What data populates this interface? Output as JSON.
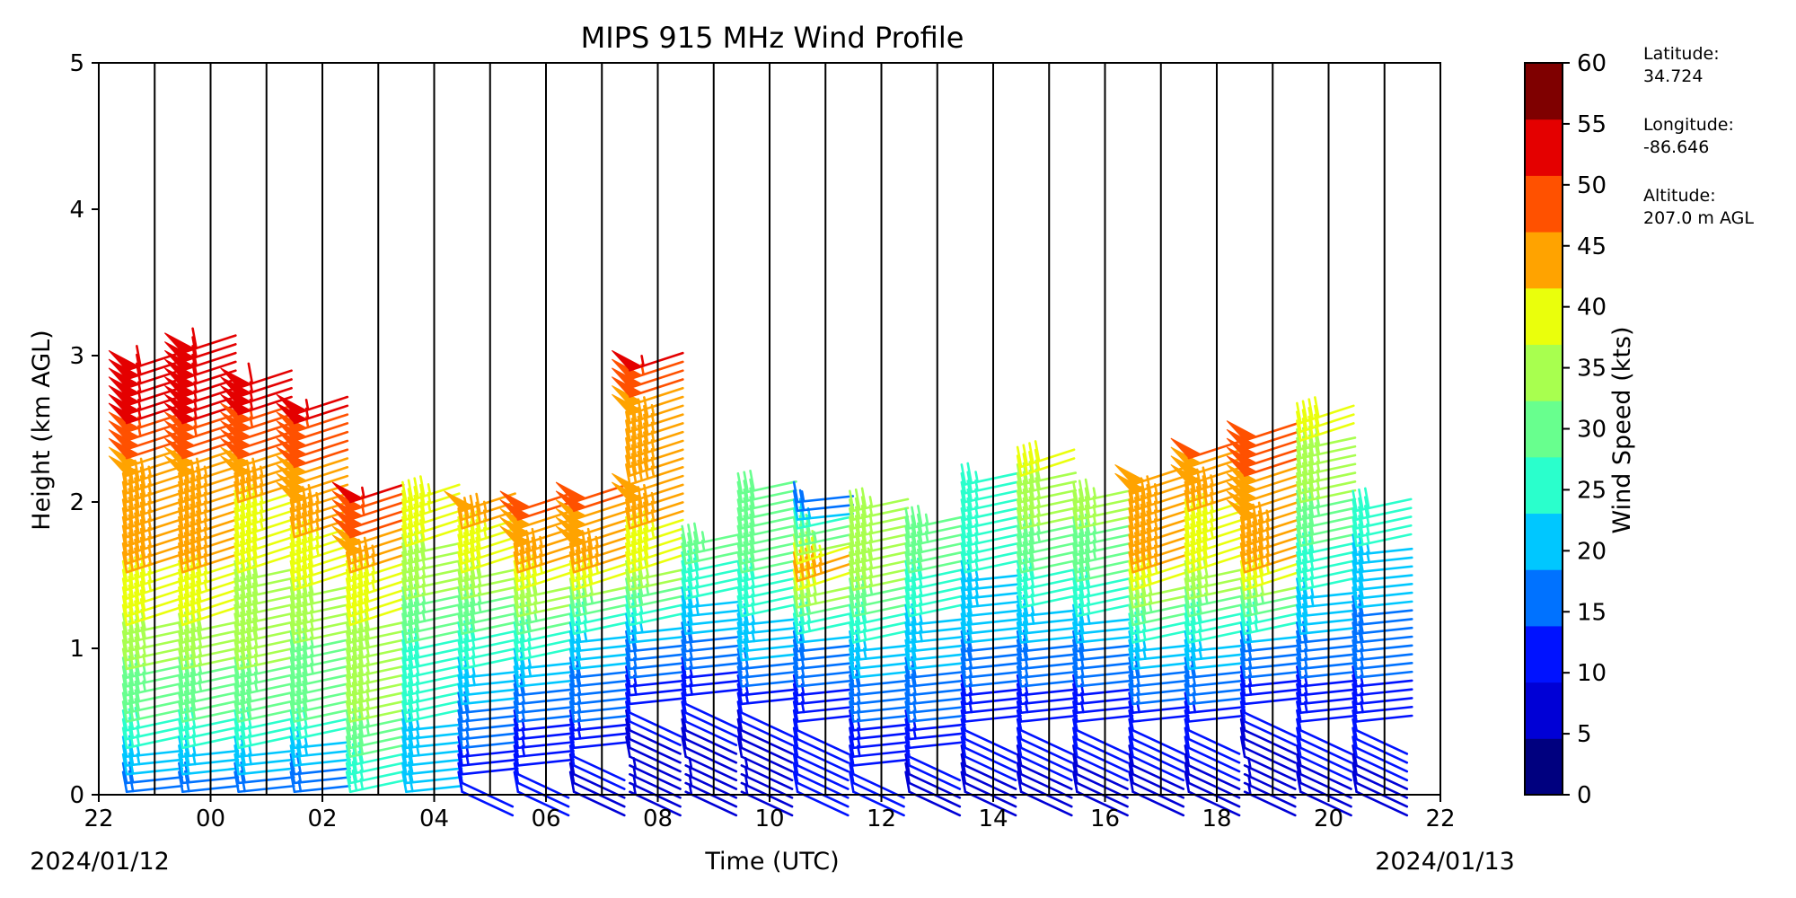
{
  "chart_data": {
    "type": "wind_barbs",
    "title": "MIPS 915 MHz Wind Profile",
    "xlabel": "Time (UTC)",
    "ylabel": "Height (km AGL)",
    "xlim": [
      "22",
      "22"
    ],
    "ylim": [
      0,
      5
    ],
    "x_tick_labels": [
      "22",
      "00",
      "02",
      "04",
      "06",
      "08",
      "10",
      "12",
      "14",
      "16",
      "18",
      "20",
      "22"
    ],
    "y_tick_labels": [
      "0",
      "1",
      "2",
      "3",
      "4",
      "5"
    ],
    "start_date_label": "2024/01/12",
    "end_date_label": "2024/01/13",
    "grid": "vertical lines every hour",
    "colorbar": {
      "label": "Wind Speed (kts)",
      "ticks": [
        "0",
        "5",
        "10",
        "15",
        "20",
        "25",
        "30",
        "35",
        "40",
        "45",
        "50",
        "55",
        "60"
      ],
      "colors": [
        "#00007f",
        "#0000d6",
        "#0012ff",
        "#0072ff",
        "#00c7ff",
        "#2affcc",
        "#68ff8e",
        "#a8ff4f",
        "#eaff0c",
        "#ffa300",
        "#ff5100",
        "#e40000",
        "#7f0000"
      ]
    },
    "profiles": [
      {
        "time": "22:30",
        "top_km": 2.95,
        "speed_kts": [
          [
            0,
            18
          ],
          [
            0.5,
            30
          ],
          [
            1.0,
            38
          ],
          [
            1.5,
            45
          ],
          [
            2.0,
            45
          ],
          [
            2.5,
            55
          ],
          [
            2.95,
            60
          ]
        ]
      },
      {
        "time": "23:30",
        "top_km": 3.05,
        "speed_kts": [
          [
            0,
            18
          ],
          [
            0.5,
            30
          ],
          [
            1.0,
            38
          ],
          [
            1.5,
            45
          ],
          [
            2.0,
            45
          ],
          [
            2.5,
            55
          ],
          [
            3.05,
            60
          ]
        ]
      },
      {
        "time": "00:30",
        "top_km": 2.8,
        "speed_kts": [
          [
            0,
            18
          ],
          [
            0.5,
            30
          ],
          [
            1.0,
            38
          ],
          [
            1.5,
            40
          ],
          [
            2.0,
            45
          ],
          [
            2.4,
            52
          ],
          [
            2.8,
            58
          ]
        ]
      },
      {
        "time": "01:30",
        "top_km": 2.65,
        "speed_kts": [
          [
            0,
            15
          ],
          [
            0.5,
            30
          ],
          [
            1.0,
            35
          ],
          [
            1.5,
            42
          ],
          [
            2.0,
            48
          ],
          [
            2.4,
            52
          ],
          [
            2.65,
            58
          ]
        ]
      },
      {
        "time": "02:30",
        "top_km": 2.0,
        "speed_kts": [
          [
            0,
            25
          ],
          [
            0.5,
            35
          ],
          [
            1.0,
            38
          ],
          [
            1.5,
            45
          ],
          [
            2.0,
            55
          ]
        ]
      },
      {
        "time": "03:30",
        "top_km": 2.05,
        "speed_kts": [
          [
            0,
            20
          ],
          [
            0.5,
            25
          ],
          [
            1.0,
            30
          ],
          [
            1.5,
            38
          ],
          [
            2.05,
            45
          ]
        ]
      },
      {
        "time": "04:30",
        "top_km": 1.95,
        "speed_kts": [
          [
            0,
            10
          ],
          [
            0.5,
            18
          ],
          [
            1.0,
            28
          ],
          [
            1.5,
            40
          ],
          [
            1.95,
            48
          ]
        ]
      },
      {
        "time": "05:30",
        "top_km": 1.95,
        "speed_kts": [
          [
            0,
            10
          ],
          [
            0.5,
            15
          ],
          [
            1.0,
            28
          ],
          [
            1.5,
            45
          ],
          [
            1.95,
            52
          ]
        ]
      },
      {
        "time": "06:30",
        "top_km": 2.05,
        "speed_kts": [
          [
            0,
            8
          ],
          [
            0.5,
            15
          ],
          [
            1.0,
            22
          ],
          [
            1.5,
            45
          ],
          [
            2.05,
            52
          ]
        ]
      },
      {
        "time": "07:30",
        "top_km": 2.9,
        "speed_kts": [
          [
            0,
            5
          ],
          [
            0.5,
            10
          ],
          [
            1.0,
            20
          ],
          [
            1.5,
            40
          ],
          [
            2.0,
            48
          ],
          [
            2.5,
            45
          ],
          [
            2.9,
            55
          ]
        ]
      },
      {
        "time": "08:30",
        "top_km": 1.75,
        "speed_kts": [
          [
            0,
            5
          ],
          [
            0.5,
            10
          ],
          [
            1.0,
            18
          ],
          [
            1.75,
            35
          ]
        ]
      },
      {
        "time": "09:30",
        "top_km": 2.1,
        "speed_kts": [
          [
            0,
            5
          ],
          [
            0.5,
            10
          ],
          [
            1.0,
            22
          ],
          [
            1.5,
            30
          ],
          [
            2.1,
            32
          ]
        ]
      },
      {
        "time": "10:30",
        "top_km": 2.0,
        "speed_kts": [
          [
            0,
            10
          ],
          [
            0.5,
            12
          ],
          [
            1.0,
            20
          ],
          [
            1.5,
            48
          ],
          [
            2.0,
            15
          ]
        ]
      },
      {
        "time": "11:30",
        "top_km": 1.95,
        "speed_kts": [
          [
            0,
            10
          ],
          [
            0.5,
            15
          ],
          [
            1.0,
            25
          ],
          [
            1.5,
            38
          ],
          [
            1.95,
            35
          ]
        ]
      },
      {
        "time": "12:30",
        "top_km": 1.85,
        "speed_kts": [
          [
            0,
            8
          ],
          [
            0.5,
            15
          ],
          [
            1.0,
            22
          ],
          [
            1.5,
            30
          ],
          [
            1.85,
            35
          ]
        ]
      },
      {
        "time": "13:30",
        "top_km": 2.15,
        "speed_kts": [
          [
            0,
            8
          ],
          [
            0.5,
            12
          ],
          [
            1.0,
            20
          ],
          [
            1.5,
            25
          ],
          [
            2.15,
            25
          ]
        ]
      },
      {
        "time": "14:30",
        "top_km": 2.25,
        "speed_kts": [
          [
            0,
            8
          ],
          [
            0.5,
            12
          ],
          [
            1.0,
            20
          ],
          [
            1.5,
            30
          ],
          [
            2.25,
            42
          ]
        ]
      },
      {
        "time": "15:30",
        "top_km": 2.05,
        "speed_kts": [
          [
            0,
            8
          ],
          [
            0.5,
            12
          ],
          [
            1.0,
            20
          ],
          [
            1.5,
            32
          ],
          [
            2.05,
            38
          ]
        ]
      },
      {
        "time": "16:30",
        "top_km": 2.15,
        "speed_kts": [
          [
            0,
            8
          ],
          [
            0.5,
            12
          ],
          [
            1.0,
            25
          ],
          [
            1.5,
            45
          ],
          [
            2.15,
            48
          ]
        ]
      },
      {
        "time": "17:30",
        "top_km": 2.3,
        "speed_kts": [
          [
            0,
            8
          ],
          [
            0.5,
            12
          ],
          [
            1.0,
            25
          ],
          [
            1.5,
            40
          ],
          [
            2.3,
            50
          ]
        ]
      },
      {
        "time": "18:30",
        "top_km": 2.45,
        "speed_kts": [
          [
            0,
            5
          ],
          [
            0.5,
            10
          ],
          [
            1.0,
            20
          ],
          [
            1.5,
            45
          ],
          [
            2.45,
            52
          ]
        ]
      },
      {
        "time": "19:30",
        "top_km": 2.55,
        "speed_kts": [
          [
            0,
            8
          ],
          [
            0.5,
            12
          ],
          [
            1.0,
            18
          ],
          [
            1.5,
            28
          ],
          [
            2.0,
            35
          ],
          [
            2.55,
            42
          ]
        ]
      },
      {
        "time": "20:30",
        "top_km": 1.95,
        "speed_kts": [
          [
            0,
            8
          ],
          [
            0.5,
            12
          ],
          [
            1.0,
            18
          ],
          [
            1.5,
            22
          ],
          [
            1.95,
            30
          ]
        ]
      }
    ]
  },
  "station_info": {
    "latitude_label": "Latitude:",
    "latitude_value": "34.724",
    "longitude_label": "Longitude:",
    "longitude_value": "-86.646",
    "altitude_label": "Altitude:",
    "altitude_value": "207.0 m AGL"
  }
}
